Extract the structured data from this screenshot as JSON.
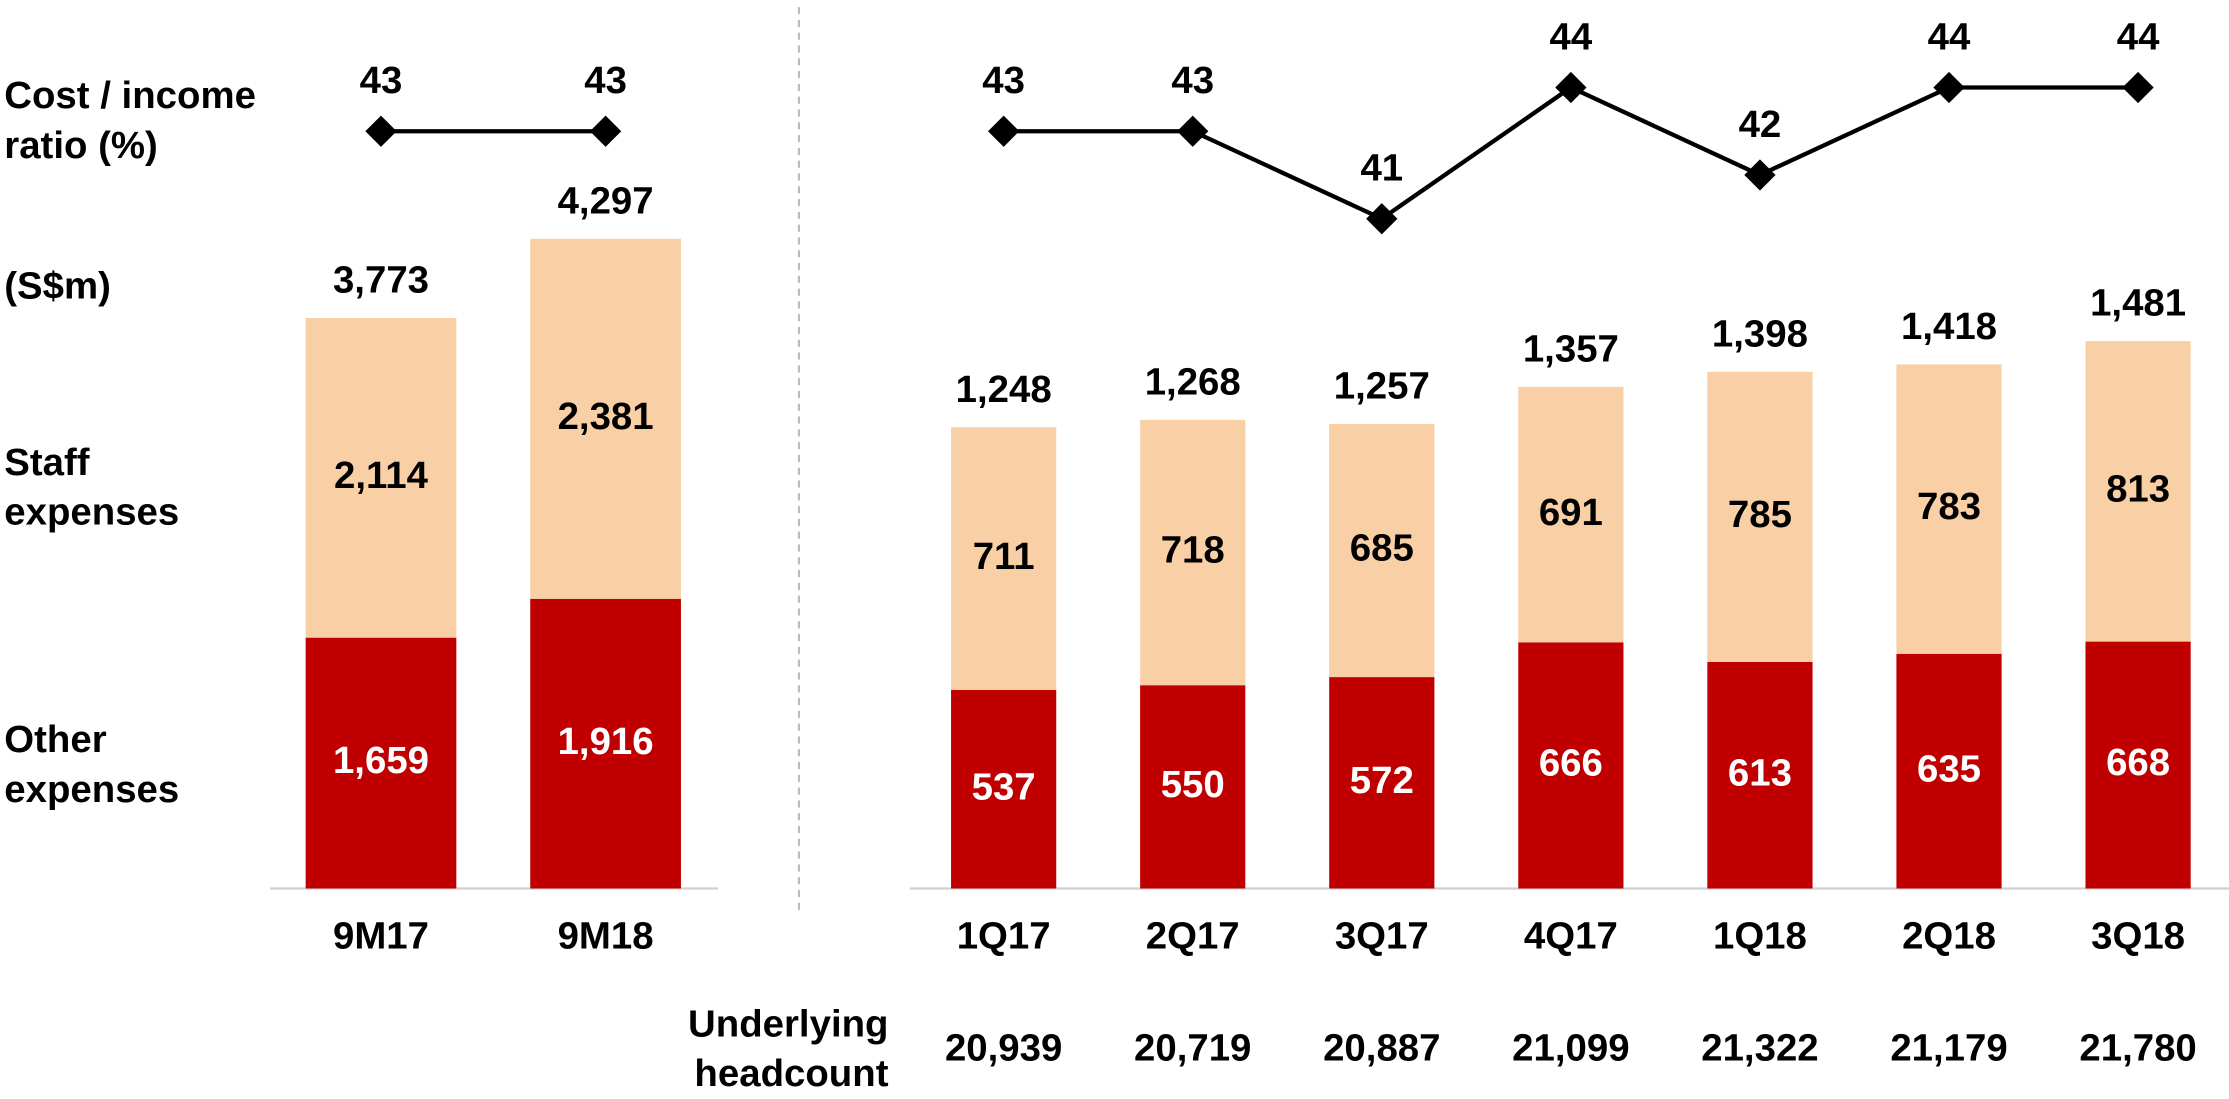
{
  "chart_data": [
    {
      "type": "bar",
      "stacked": true,
      "unit": "(S$m)",
      "categories": [
        "9M17",
        "9M18"
      ],
      "ylim": [
        0,
        5500
      ],
      "series": [
        {
          "name": "Other expenses",
          "color": "#c00000",
          "label_color": "#ffffff",
          "values": [
            1659,
            1916
          ],
          "value_labels": [
            "1,659",
            "1,916"
          ]
        },
        {
          "name": "Staff expenses",
          "color": "#f9cfa5",
          "label_color": "#000000",
          "values": [
            2114,
            2381
          ],
          "value_labels": [
            "2,114",
            "2,381"
          ]
        }
      ],
      "totals": {
        "values": [
          3773,
          4297
        ],
        "value_labels": [
          "3,773",
          "4,297"
        ]
      },
      "line": {
        "name": "Cost / income ratio (%)",
        "color": "#000000",
        "values": [
          43,
          43
        ]
      },
      "y2lim": [
        39.5,
        46
      ]
    },
    {
      "type": "bar",
      "stacked": true,
      "categories": [
        "1Q17",
        "2Q17",
        "3Q17",
        "4Q17",
        "1Q18",
        "2Q18",
        "3Q18"
      ],
      "ylim": [
        0,
        2250
      ],
      "series": [
        {
          "color": "#c00000",
          "label_color": "#ffffff",
          "values": [
            537,
            550,
            572,
            666,
            613,
            635,
            668
          ]
        },
        {
          "color": "#f9cfa5",
          "label_color": "#000000",
          "values": [
            711,
            718,
            685,
            691,
            785,
            783,
            813
          ]
        }
      ],
      "totals": {
        "values": [
          1248,
          1268,
          1257,
          1357,
          1398,
          1418,
          1481
        ],
        "value_labels": [
          "1,248",
          "1,268",
          "1,257",
          "1,357",
          "1,398",
          "1,418",
          "1,481"
        ]
      },
      "line": {
        "color": "#000000",
        "values": [
          43,
          43,
          41,
          44,
          42,
          44,
          44
        ]
      },
      "y2lim": [
        39.5,
        46
      ],
      "headcount": {
        "name": "Underlying headcount",
        "values": [
          20939,
          20719,
          20887,
          21099,
          21322,
          21179,
          21780
        ],
        "value_labels": [
          "20,939",
          "20,719",
          "20,887",
          "21,099",
          "21,322",
          "21,179",
          "21,780"
        ]
      }
    }
  ]
}
